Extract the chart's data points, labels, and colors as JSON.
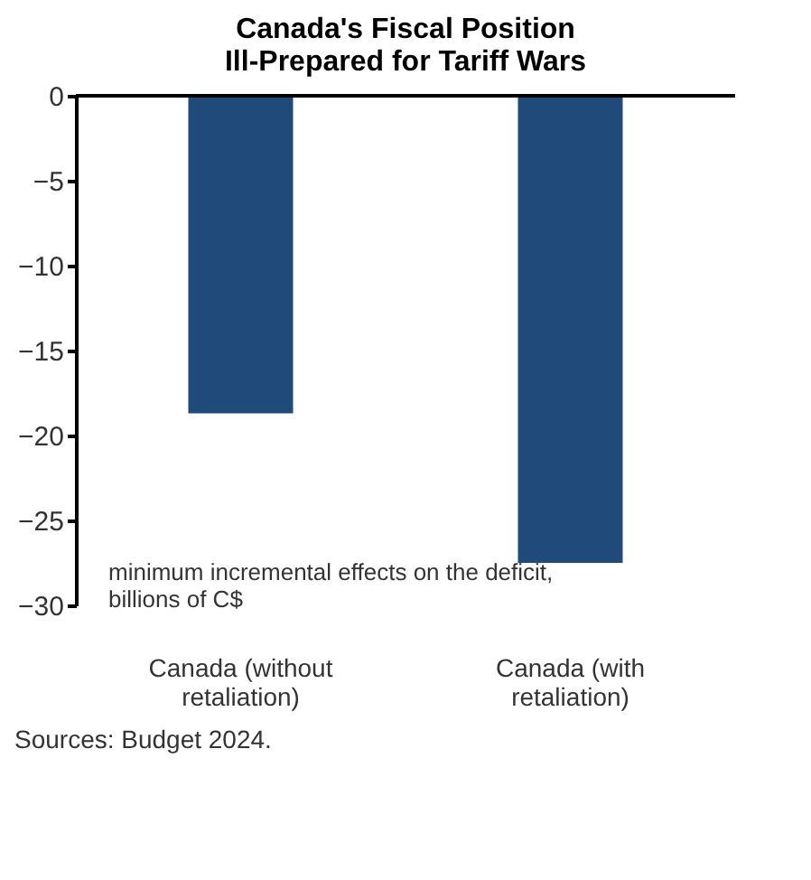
{
  "chart_data": {
    "type": "bar",
    "title": [
      "Canada's Fiscal Position",
      "Ill-Prepared for Tariff Wars"
    ],
    "categories": [
      "Canada (without retaliation)",
      "Canada (with retaliation)"
    ],
    "values": [
      -18.7,
      -27.5
    ],
    "color": "#204a7a",
    "ylim": [
      -30,
      0
    ],
    "yticks": [
      0,
      -5,
      -10,
      -15,
      -20,
      -25,
      -30
    ],
    "grid": false,
    "annotations": [
      "minimum incremental effects on the deficit, billions of C$",
      "Sources: Budget 2024."
    ]
  }
}
